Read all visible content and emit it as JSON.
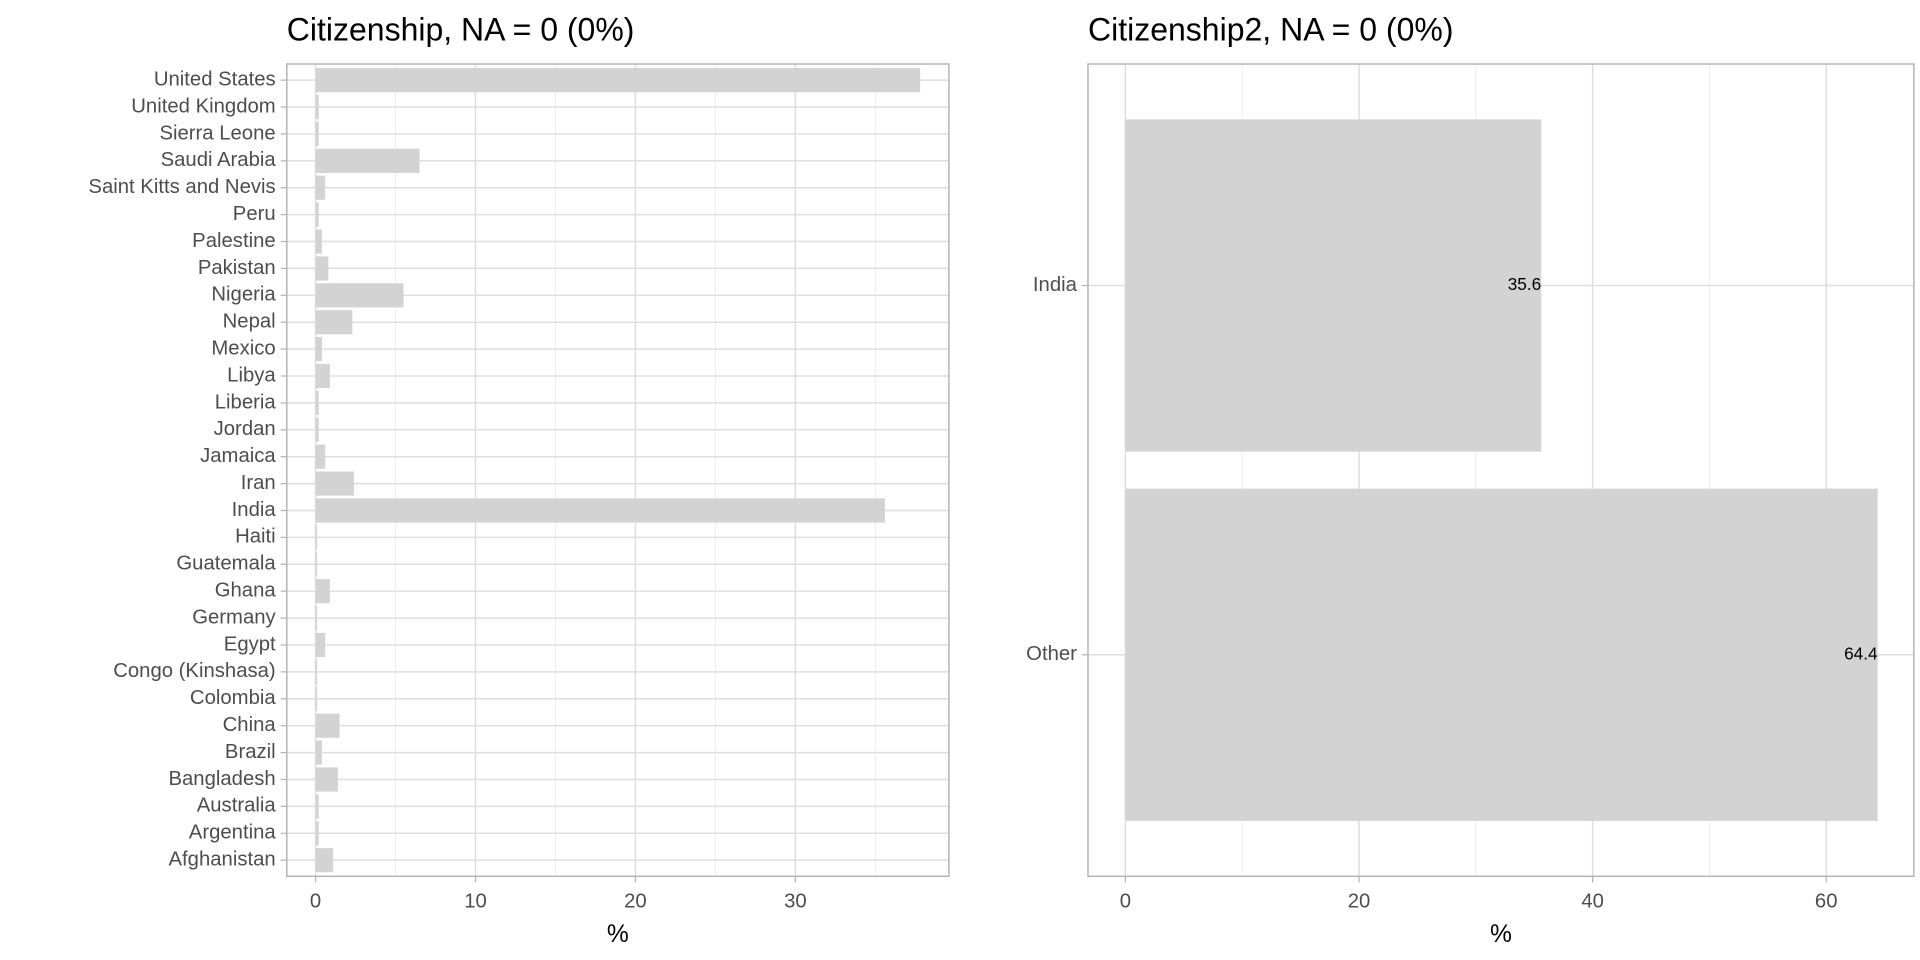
{
  "chart_data": [
    {
      "type": "bar",
      "orientation": "horizontal",
      "title": "Citizenship, NA = 0 (0%)",
      "x_label": "%",
      "categories": [
        "Afghanistan",
        "Argentina",
        "Australia",
        "Bangladesh",
        "Brazil",
        "China",
        "Colombia",
        "Congo (Kinshasa)",
        "Egypt",
        "Germany",
        "Ghana",
        "Guatemala",
        "Haiti",
        "India",
        "Iran",
        "Jamaica",
        "Jordan",
        "Liberia",
        "Libya",
        "Mexico",
        "Nepal",
        "Nigeria",
        "Pakistan",
        "Palestine",
        "Peru",
        "Saint Kitts and Nevis",
        "Saudi Arabia",
        "Sierra Leone",
        "United Kingdom",
        "United States"
      ],
      "values": [
        1.1,
        0.2,
        0.2,
        1.4,
        0.4,
        1.5,
        0.1,
        0.1,
        0.6,
        0.1,
        0.9,
        0.1,
        0.1,
        35.6,
        2.4,
        0.6,
        0.2,
        0.2,
        0.9,
        0.4,
        2.3,
        5.5,
        0.8,
        0.4,
        0.2,
        0.6,
        6.5,
        0.2,
        0.2,
        37.8
      ],
      "color": "#d3d3d3",
      "xlim": [
        -1.8,
        39.6
      ],
      "xticks": [
        0,
        10,
        20,
        30
      ],
      "grid": true
    },
    {
      "type": "bar",
      "orientation": "horizontal",
      "title": "Citizenship2, NA = 0 (0%)",
      "x_label": "%",
      "categories": [
        "Other",
        "India"
      ],
      "values": [
        64.4,
        35.6
      ],
      "show_value_labels": true,
      "color": "#d3d3d3",
      "xlim": [
        -3.2,
        67.5
      ],
      "xticks": [
        0,
        20,
        40,
        60
      ],
      "grid": true
    }
  ]
}
